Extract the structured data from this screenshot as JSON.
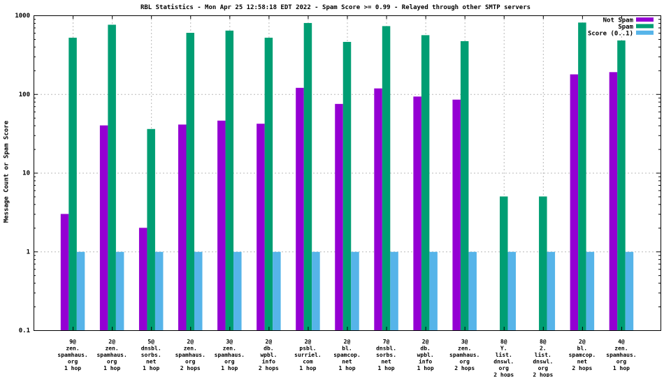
{
  "chart_data": {
    "type": "bar",
    "title": "RBL Statistics - Mon Apr 25 12:58:18 EDT 2022 - Spam Score >= 0.99 - Relayed through other SMTP servers",
    "ylabel": "Message Count or Spam Score",
    "xlabel": "",
    "y_scale": "log",
    "ylim": [
      0.1,
      1000
    ],
    "y_ticks": [
      "0.1",
      "1",
      "10",
      "100",
      "1000"
    ],
    "grid": true,
    "legend_position": "top-right-inside",
    "colors": {
      "not_spam": "#9400d3",
      "spam": "#009e73",
      "score": "#56b4e9",
      "grid": "#b8b8b8",
      "axis": "#000000"
    },
    "categories": [
      [
        "9@",
        "zen.",
        "spamhaus.",
        "org",
        "1 hop"
      ],
      [
        "2@",
        "zen.",
        "spamhaus.",
        "org",
        "1 hop"
      ],
      [
        "5@",
        "dnsbl.",
        "sorbs.",
        "net",
        "1 hop"
      ],
      [
        "2@",
        "zen.",
        "spamhaus.",
        "org",
        "2 hops"
      ],
      [
        "3@",
        "zen.",
        "spamhaus.",
        "org",
        "1 hop"
      ],
      [
        "2@",
        "db.",
        "wpbl.",
        "info",
        "2 hops"
      ],
      [
        "2@",
        "psbl.",
        "surriel.",
        "com",
        "1 hop"
      ],
      [
        "2@",
        "bl.",
        "spamcop.",
        "net",
        "1 hop"
      ],
      [
        "7@",
        "dnsbl.",
        "sorbs.",
        "net",
        "1 hop"
      ],
      [
        "2@",
        "db.",
        "wpbl.",
        "info",
        "1 hop"
      ],
      [
        "3@",
        "zen.",
        "spamhaus.",
        "org",
        "2 hops"
      ],
      [
        "8@",
        "Y.",
        "list.",
        "dnswl.",
        "org",
        "2 hops"
      ],
      [
        "8@",
        "2.",
        "list.",
        "dnswl.",
        "org",
        "2 hops"
      ],
      [
        "2@",
        "bl.",
        "spamcop.",
        "net",
        "2 hops"
      ],
      [
        "4@",
        "zen.",
        "spamhaus.",
        "org",
        "1 hop"
      ]
    ],
    "series": [
      {
        "name": "Not Spam",
        "color_key": "not_spam",
        "values": [
          3,
          40,
          2,
          41,
          46,
          42,
          120,
          75,
          118,
          93,
          85,
          null,
          null,
          178,
          190
        ]
      },
      {
        "name": "Spam",
        "color_key": "spam",
        "values": [
          520,
          760,
          36,
          600,
          640,
          520,
          800,
          460,
          730,
          560,
          470,
          5,
          5,
          810,
          480
        ]
      },
      {
        "name": "Score (0..1)",
        "color_key": "score",
        "values": [
          0.99,
          0.99,
          0.99,
          0.99,
          0.99,
          0.99,
          0.99,
          0.99,
          0.99,
          0.99,
          0.99,
          0.99,
          0.99,
          0.99,
          0.99
        ]
      }
    ]
  }
}
